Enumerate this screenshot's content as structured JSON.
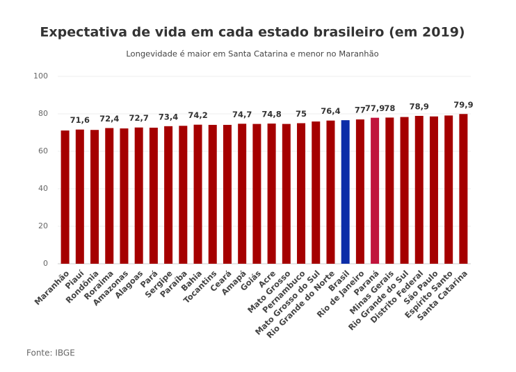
{
  "chart_data": {
    "type": "bar",
    "title": "Expectativa de vida em cada estado brasileiro (em 2019)",
    "subtitle": "Longevidade é maior em Santa Catarina e menor no Maranhão",
    "source": "Fonte: IBGE",
    "categories": [
      "Maranhão",
      "Piauí",
      "Rondônia",
      "Roraima",
      "Amazonas",
      "Alagoas",
      "Pará",
      "Sergipe",
      "Paraíba",
      "Bahia",
      "Tocantins",
      "Ceará",
      "Amapá",
      "Goiás",
      "Acre",
      "Mato Grosso",
      "Pernambuco",
      "Mato Grosso do Sul",
      "Rio Grande do Norte",
      "Brasil",
      "Rio de Janeiro",
      "Paraná",
      "Minas Gerais",
      "Rio Grande do Sul",
      "Distrito Federal",
      "São Paulo",
      "Espírito Santo",
      "Santa Catarina"
    ],
    "values": [
      71.1,
      71.6,
      71.4,
      72.4,
      72.2,
      72.7,
      72.6,
      73.4,
      73.6,
      74.2,
      74.1,
      74.1,
      74.7,
      74.6,
      74.8,
      74.6,
      75,
      75.9,
      76.4,
      76.6,
      77,
      77.9,
      78,
      78.3,
      78.9,
      78.6,
      79.1,
      79.9
    ],
    "value_labels": [
      null,
      "71,6",
      null,
      "72,4",
      null,
      "72,7",
      null,
      "73,4",
      null,
      "74,2",
      null,
      null,
      "74,7",
      null,
      "74,8",
      null,
      "75",
      null,
      "76,4",
      null,
      "77",
      "77,9",
      "78",
      null,
      "78,9",
      null,
      null,
      "79,9"
    ],
    "colors": [
      "#a50000",
      "#a50000",
      "#a50000",
      "#a50000",
      "#a50000",
      "#a50000",
      "#a50000",
      "#a50000",
      "#a50000",
      "#a50000",
      "#a50000",
      "#a50000",
      "#a50000",
      "#a50000",
      "#a50000",
      "#a50000",
      "#a50000",
      "#a50000",
      "#a50000",
      "#0c2da8",
      "#a50000",
      "#c0143c",
      "#a50000",
      "#a50000",
      "#a50000",
      "#a50000",
      "#a50000",
      "#a50000"
    ],
    "ylim": [
      0,
      100
    ],
    "yticks": [
      0,
      20,
      40,
      60,
      80,
      100
    ],
    "grid": true
  }
}
